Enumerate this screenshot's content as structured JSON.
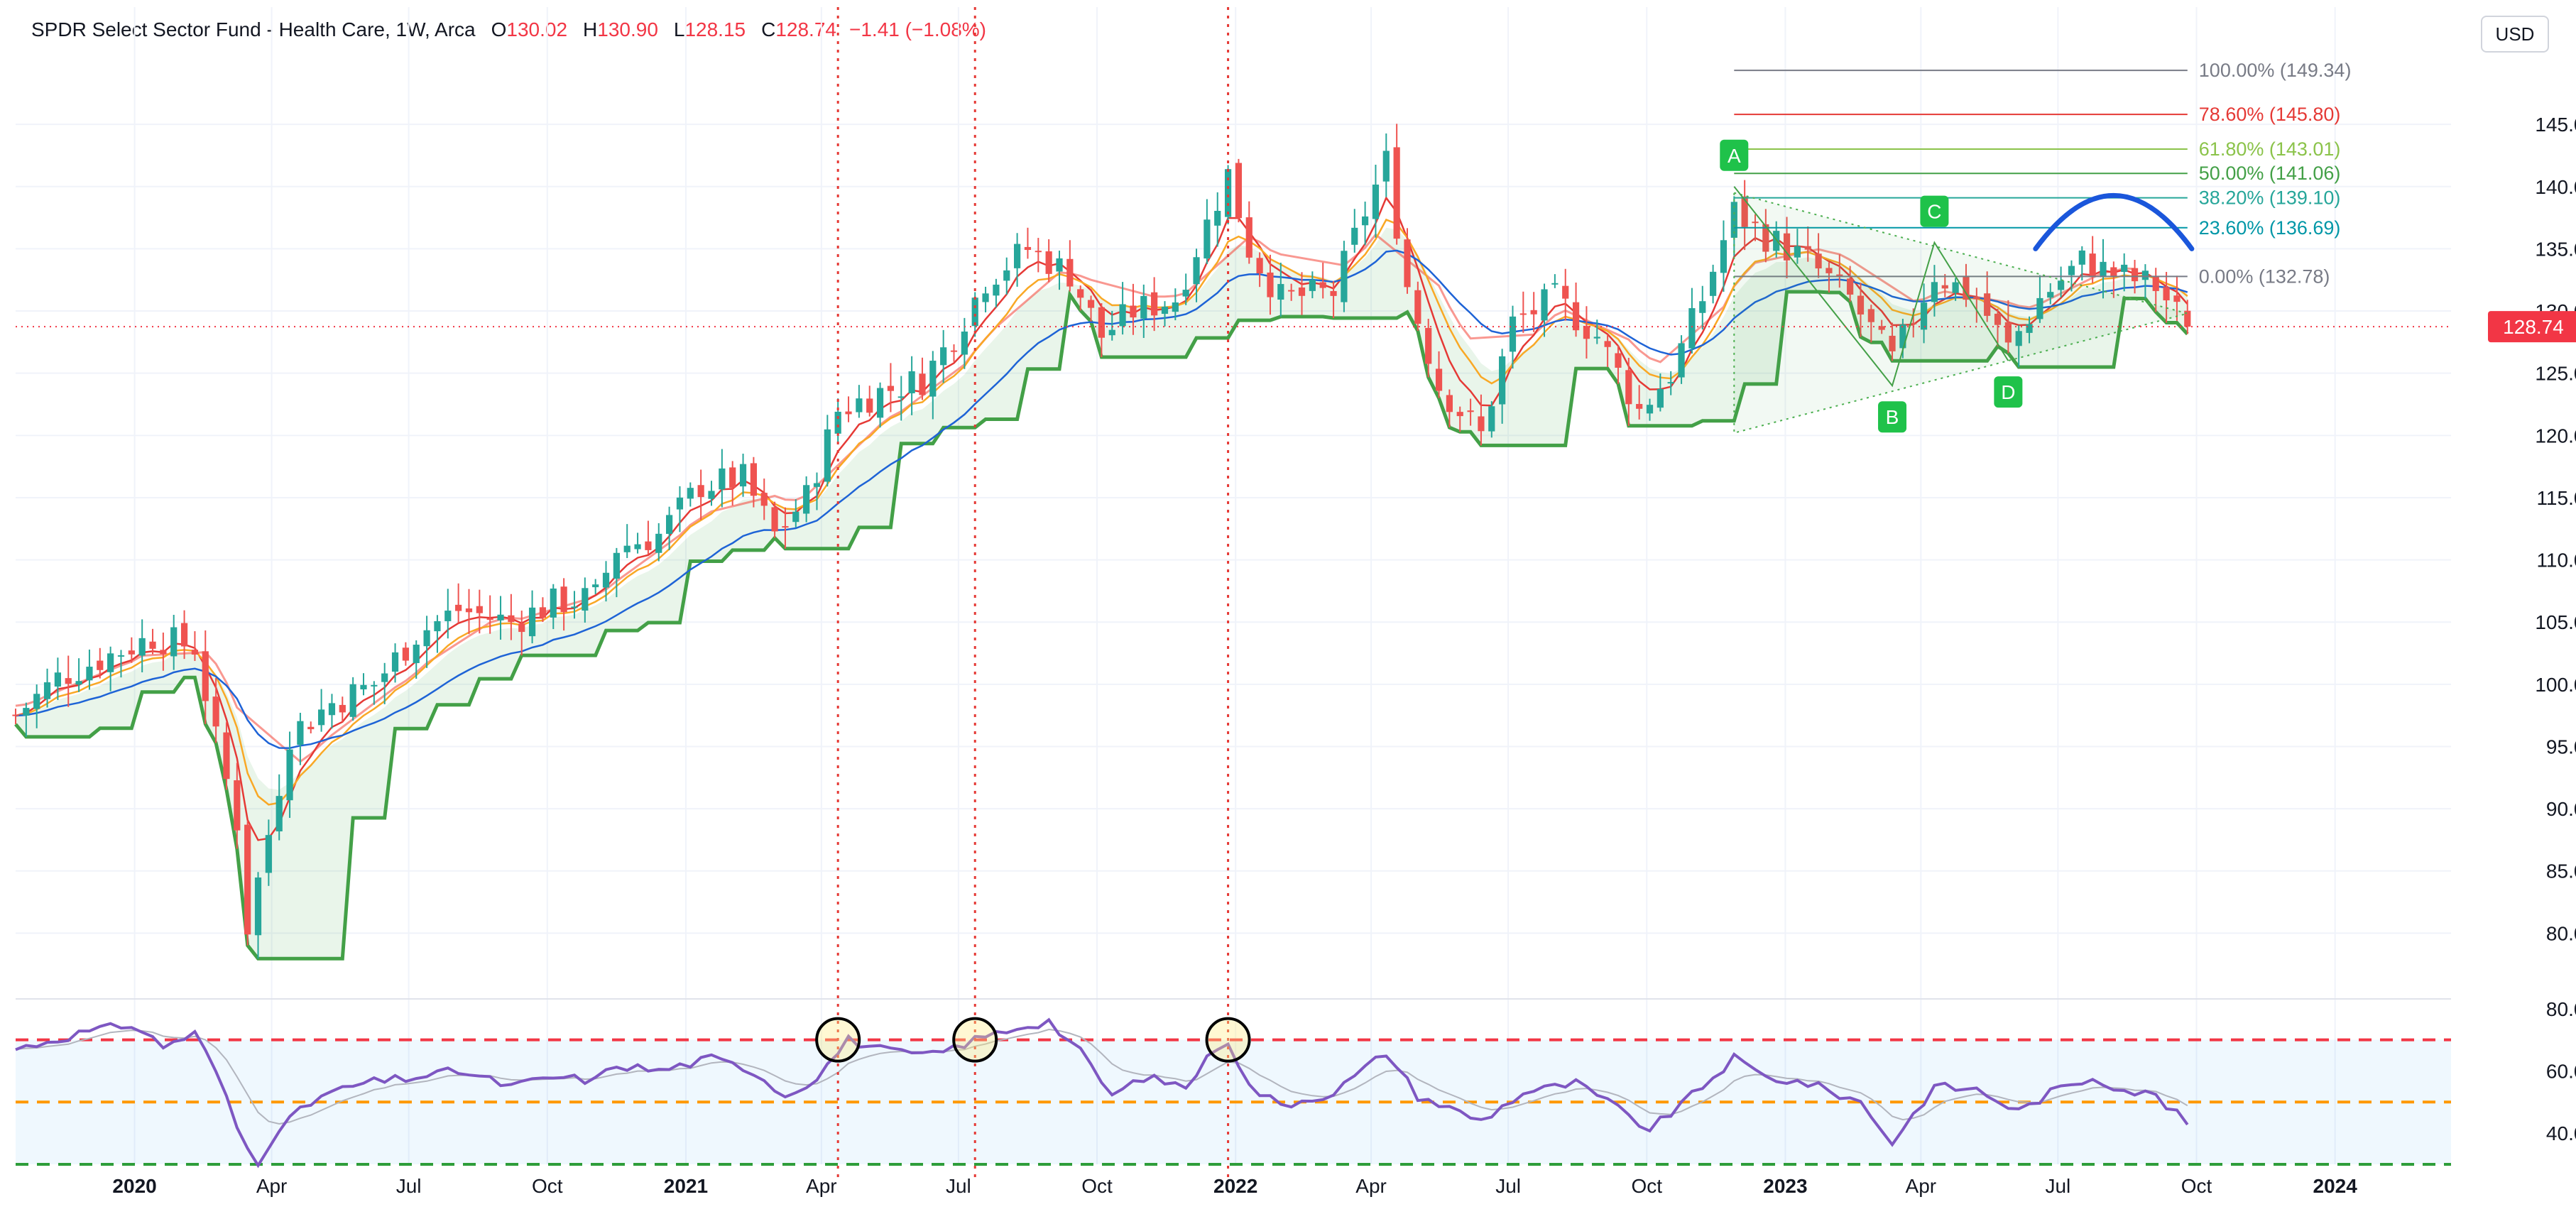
{
  "header": {
    "symbol": "SPDR Select Sector Fund - Health Care, 1W, Arca",
    "open_label": "O",
    "open": "130.02",
    "high_label": "H",
    "high": "130.90",
    "low_label": "L",
    "low": "128.15",
    "close_label": "C",
    "close": "128.74",
    "change": "−1.41 (−1.08%)"
  },
  "currency_button": "USD",
  "colors": {
    "up": "#26a69a",
    "down": "#ef5350",
    "accent_red": "#f23645",
    "envelope_green": "#43a047",
    "envelope_red": "#f44336",
    "rsi": "#7e57c2",
    "wave": "#1a56db"
  },
  "chart_data": [
    {
      "type": "candlestick",
      "interval": "1W",
      "price_axis": {
        "ylim": [
          75,
          151
        ],
        "ticks": [
          "145.00",
          "140.00",
          "135.00",
          "130.00",
          "125.00",
          "120.00",
          "115.00",
          "110.00",
          "105.00",
          "100.00",
          "95.00",
          "90.00",
          "85.00",
          "80.00"
        ]
      },
      "time_axis": {
        "labels": [
          {
            "text": "2020",
            "x": "2020-01-01",
            "bold": true
          },
          {
            "text": "Apr",
            "x": "2020-04-01"
          },
          {
            "text": "Jul",
            "x": "2020-07-01"
          },
          {
            "text": "Oct",
            "x": "2020-10-01"
          },
          {
            "text": "2021",
            "x": "2021-01-01",
            "bold": true
          },
          {
            "text": "Apr",
            "x": "2021-04-01"
          },
          {
            "text": "Jul",
            "x": "2021-07-01"
          },
          {
            "text": "Oct",
            "x": "2021-10-01"
          },
          {
            "text": "2022",
            "x": "2022-01-01",
            "bold": true
          },
          {
            "text": "Apr",
            "x": "2022-04-01"
          },
          {
            "text": "Jul",
            "x": "2022-07-01"
          },
          {
            "text": "Oct",
            "x": "2022-10-01"
          },
          {
            "text": "2023",
            "x": "2023-01-01",
            "bold": true
          },
          {
            "text": "Apr",
            "x": "2023-04-01"
          },
          {
            "text": "Jul",
            "x": "2023-07-01"
          },
          {
            "text": "Oct",
            "x": "2023-10-01"
          },
          {
            "text": "2024",
            "x": "2024-01-01",
            "bold": true
          }
        ]
      },
      "close_path": [
        [
          "2019-10-14",
          97.5
        ],
        [
          "2019-11-11",
          100.5
        ],
        [
          "2019-12-09",
          102.0
        ],
        [
          "2020-01-13",
          103.8
        ],
        [
          "2020-02-10",
          103.0
        ],
        [
          "2020-02-24",
          95.5
        ],
        [
          "2020-03-09",
          89.0
        ],
        [
          "2020-03-16",
          80.5
        ],
        [
          "2020-03-30",
          88.0
        ],
        [
          "2020-04-13",
          96.0
        ],
        [
          "2020-05-11",
          98.5
        ],
        [
          "2020-06-08",
          100.0
        ],
        [
          "2020-07-06",
          104.0
        ],
        [
          "2020-08-03",
          106.0
        ],
        [
          "2020-09-07",
          105.0
        ],
        [
          "2020-10-05",
          106.5
        ],
        [
          "2020-11-02",
          107.0
        ],
        [
          "2020-11-16",
          111.0
        ],
        [
          "2020-12-14",
          112.0
        ],
        [
          "2021-01-11",
          116.0
        ],
        [
          "2021-02-08",
          116.5
        ],
        [
          "2021-03-01",
          112.0
        ],
        [
          "2021-03-22",
          115.0
        ],
        [
          "2021-04-12",
          122.0
        ],
        [
          "2021-05-10",
          123.5
        ],
        [
          "2021-06-07",
          124.5
        ],
        [
          "2021-06-28",
          128.0
        ],
        [
          "2021-07-19",
          132.5
        ],
        [
          "2021-08-16",
          135.0
        ],
        [
          "2021-09-13",
          133.0
        ],
        [
          "2021-10-04",
          128.0
        ],
        [
          "2021-10-25",
          130.0
        ],
        [
          "2021-11-22",
          131.0
        ],
        [
          "2021-12-13",
          137.0
        ],
        [
          "2021-12-27",
          141.0
        ],
        [
          "2022-01-10",
          135.0
        ],
        [
          "2022-01-31",
          131.0
        ],
        [
          "2022-03-07",
          131.5
        ],
        [
          "2022-03-28",
          138.0
        ],
        [
          "2022-04-11",
          142.0
        ],
        [
          "2022-04-25",
          132.0
        ],
        [
          "2022-05-16",
          124.0
        ],
        [
          "2022-06-13",
          120.0
        ],
        [
          "2022-07-04",
          129.0
        ],
        [
          "2022-08-01",
          131.0
        ],
        [
          "2022-08-29",
          128.0
        ],
        [
          "2022-09-26",
          122.0
        ],
        [
          "2022-10-17",
          125.0
        ],
        [
          "2022-11-07",
          131.0
        ],
        [
          "2022-11-28",
          138.0
        ],
        [
          "2022-12-19",
          136.0
        ],
        [
          "2023-01-16",
          134.0
        ],
        [
          "2023-02-13",
          131.0
        ],
        [
          "2023-03-13",
          126.0
        ],
        [
          "2023-04-10",
          133.0
        ],
        [
          "2023-05-08",
          131.0
        ],
        [
          "2023-05-29",
          127.0
        ],
        [
          "2023-06-19",
          131.0
        ],
        [
          "2023-07-17",
          134.0
        ],
        [
          "2023-08-07",
          133.0
        ],
        [
          "2023-09-04",
          132.0
        ],
        [
          "2023-09-25",
          128.74
        ]
      ],
      "current_price_label": "128.74",
      "fibonacci": {
        "start": "2022-11-28",
        "end": "2023-09-25",
        "levels": [
          {
            "label": "100.00% (149.34)",
            "price": 149.34,
            "color": "#787b86"
          },
          {
            "label": "78.60% (145.80)",
            "price": 145.8,
            "color": "#e53935"
          },
          {
            "label": "61.80% (143.01)",
            "price": 143.01,
            "color": "#8bc34a"
          },
          {
            "label": "50.00% (141.06)",
            "price": 141.06,
            "color": "#43a047"
          },
          {
            "label": "38.20% (139.10)",
            "price": 139.1,
            "color": "#26a69a"
          },
          {
            "label": "23.60% (136.69)",
            "price": 136.69,
            "color": "#0097a7"
          },
          {
            "label": "0.00% (132.78)",
            "price": 132.78,
            "color": "#787b86"
          }
        ]
      },
      "abcd_points": [
        {
          "label": "A",
          "x": "2022-11-28",
          "y": 140.0,
          "pos": "above"
        },
        {
          "label": "B",
          "x": "2023-03-13",
          "y": 124.0,
          "pos": "below"
        },
        {
          "label": "C",
          "x": "2023-04-10",
          "y": 135.5,
          "pos": "above"
        },
        {
          "label": "D",
          "x": "2023-05-29",
          "y": 126.0,
          "pos": "below"
        }
      ],
      "vertical_markers": [
        "2021-04-12",
        "2021-07-12",
        "2021-12-27"
      ]
    },
    {
      "type": "line",
      "name": "",
      "ylim": [
        30,
        82
      ],
      "ticks": [
        "80.00",
        "60.00",
        "40.00"
      ],
      "levels": [
        {
          "value": 70,
          "color": "#f23645"
        },
        {
          "value": 50,
          "color": "#ff9800"
        },
        {
          "value": 30,
          "color": "#2e9d3a"
        }
      ],
      "values_path": [
        [
          "2019-10-14",
          67
        ],
        [
          "2019-11-25",
          72
        ],
        [
          "2019-12-30",
          75
        ],
        [
          "2020-01-20",
          68
        ],
        [
          "2020-02-10",
          72
        ],
        [
          "2020-02-24",
          60
        ],
        [
          "2020-03-09",
          42
        ],
        [
          "2020-03-16",
          35
        ],
        [
          "2020-03-23",
          31
        ],
        [
          "2020-04-06",
          42
        ],
        [
          "2020-05-04",
          52
        ],
        [
          "2020-06-01",
          56
        ],
        [
          "2020-07-06",
          58
        ],
        [
          "2020-08-03",
          60
        ],
        [
          "2020-09-07",
          55
        ],
        [
          "2020-10-05",
          58
        ],
        [
          "2020-11-02",
          57
        ],
        [
          "2020-11-16",
          62
        ],
        [
          "2020-12-14",
          60
        ],
        [
          "2021-01-18",
          64
        ],
        [
          "2021-02-15",
          60
        ],
        [
          "2021-03-08",
          52
        ],
        [
          "2021-03-29",
          58
        ],
        [
          "2021-04-19",
          70
        ],
        [
          "2021-05-17",
          66
        ],
        [
          "2021-06-14",
          65
        ],
        [
          "2021-07-12",
          70
        ],
        [
          "2021-08-09",
          74
        ],
        [
          "2021-08-30",
          76
        ],
        [
          "2021-09-20",
          66
        ],
        [
          "2021-10-11",
          52
        ],
        [
          "2021-11-01",
          58
        ],
        [
          "2021-11-29",
          55
        ],
        [
          "2021-12-20",
          68
        ],
        [
          "2021-12-27",
          70
        ],
        [
          "2022-01-10",
          55
        ],
        [
          "2022-01-31",
          49
        ],
        [
          "2022-03-07",
          53
        ],
        [
          "2022-04-11",
          66
        ],
        [
          "2022-05-02",
          52
        ],
        [
          "2022-06-13",
          44
        ],
        [
          "2022-07-11",
          53
        ],
        [
          "2022-08-15",
          56
        ],
        [
          "2022-09-05",
          50
        ],
        [
          "2022-10-03",
          41
        ],
        [
          "2022-10-31",
          52
        ],
        [
          "2022-11-28",
          64
        ],
        [
          "2022-12-19",
          58
        ],
        [
          "2023-01-16",
          56
        ],
        [
          "2023-02-20",
          50
        ],
        [
          "2023-03-13",
          37
        ],
        [
          "2023-04-10",
          55
        ],
        [
          "2023-05-08",
          54
        ],
        [
          "2023-06-05",
          47
        ],
        [
          "2023-06-26",
          53
        ],
        [
          "2023-07-24",
          58
        ],
        [
          "2023-08-14",
          54
        ],
        [
          "2023-09-04",
          52
        ],
        [
          "2023-09-25",
          43
        ]
      ]
    }
  ],
  "x_range": [
    "2019-10-14",
    "2024-03-18"
  ]
}
